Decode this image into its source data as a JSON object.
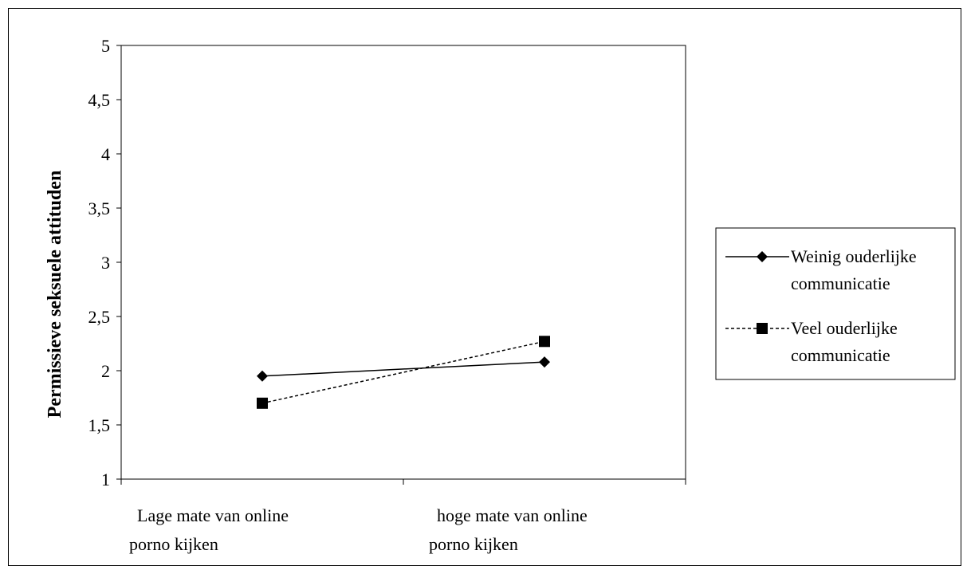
{
  "chart_data": {
    "type": "line",
    "title": "",
    "ylabel": "Permissieve seksuele attituden",
    "xlabel": "",
    "categories": [
      [
        "Lage mate van online",
        "porno kijken"
      ],
      [
        "hoge mate van online",
        "porno kijken"
      ]
    ],
    "ylim": [
      1,
      5
    ],
    "yticks": [
      "1",
      "1,5",
      "2",
      "2,5",
      "3",
      "3,5",
      "4",
      "4,5",
      "5"
    ],
    "ytick_values": [
      1,
      1.5,
      2,
      2.5,
      3,
      3.5,
      4,
      4.5,
      5
    ],
    "grid": false,
    "legend_position": "right",
    "series": [
      {
        "name_lines": [
          "Weinig ouderlijke",
          "communicatie"
        ],
        "values": [
          1.95,
          2.08
        ],
        "marker": "diamond",
        "line_style": "solid",
        "color": "#000000"
      },
      {
        "name_lines": [
          "Veel ouderlijke",
          "communicatie"
        ],
        "values": [
          1.7,
          2.27
        ],
        "marker": "square",
        "line_style": "dashed",
        "color": "#000000"
      }
    ]
  }
}
